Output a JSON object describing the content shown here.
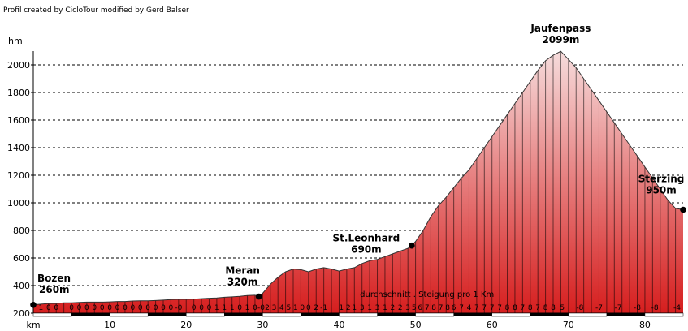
{
  "credit": "Profil created by CicloTour modified by Gerd Balser",
  "chart_data": {
    "type": "area",
    "title": "",
    "xlabel": "km",
    "ylabel": "hm",
    "xlim": [
      0,
      85
    ],
    "ylim": [
      200,
      2100
    ],
    "x_ticks": [
      10,
      20,
      30,
      40,
      50,
      60,
      70,
      80
    ],
    "y_ticks": [
      200,
      400,
      600,
      800,
      1000,
      1200,
      1400,
      1600,
      1800,
      2000
    ],
    "grid": true,
    "profile": {
      "x": [
        0,
        1,
        2,
        3,
        4,
        5,
        6,
        7,
        8,
        9,
        10,
        11,
        12,
        13,
        14,
        15,
        16,
        17,
        18,
        19,
        20,
        21,
        22,
        23,
        24,
        25,
        26,
        27,
        28,
        29,
        29.5,
        30,
        31,
        32,
        33,
        34,
        35,
        36,
        37,
        38,
        39,
        40,
        41,
        42,
        43,
        44,
        45,
        46,
        47,
        48,
        49,
        49.5,
        50,
        51,
        52,
        53,
        54,
        55,
        56,
        57,
        58,
        59,
        60,
        61,
        62,
        63,
        64,
        65,
        66,
        67,
        68,
        69,
        70,
        71,
        72,
        73,
        74,
        75,
        76,
        77,
        78,
        79,
        80,
        81,
        82,
        83,
        84,
        85
      ],
      "y": [
        260,
        265,
        270,
        270,
        275,
        275,
        278,
        280,
        280,
        280,
        282,
        285,
        285,
        288,
        290,
        290,
        292,
        295,
        298,
        300,
        300,
        302,
        305,
        308,
        310,
        315,
        318,
        322,
        328,
        330,
        320,
        345,
        410,
        460,
        500,
        520,
        515,
        500,
        520,
        530,
        520,
        505,
        520,
        530,
        560,
        580,
        590,
        610,
        630,
        650,
        670,
        690,
        720,
        800,
        900,
        980,
        1040,
        1110,
        1180,
        1240,
        1320,
        1400,
        1480,
        1560,
        1640,
        1720,
        1800,
        1880,
        1960,
        2030,
        2070,
        2099,
        2040,
        1980,
        1900,
        1820,
        1740,
        1660,
        1580,
        1500,
        1420,
        1340,
        1260,
        1180,
        1100,
        1020,
        960,
        950
      ]
    },
    "places": [
      {
        "name": "Bozen",
        "elevation_label": "260m",
        "km": 0,
        "elev": 260
      },
      {
        "name": "Meran",
        "elevation_label": "320m",
        "km": 29.5,
        "elev": 320
      },
      {
        "name": "St.Leonhard",
        "elevation_label": "690m",
        "km": 49.5,
        "elev": 690
      },
      {
        "name": "Jaufenpass",
        "elevation_label": "2099m",
        "km": 69,
        "elev": 2099
      },
      {
        "name": "Sterzing",
        "elevation_label": "950m",
        "km": 85,
        "elev": 950
      }
    ],
    "gradient_note": "durchschnitt . Steigung pro 1 Km",
    "gradients": [
      {
        "km": 1,
        "text": "1"
      },
      {
        "km": 2,
        "text": "0"
      },
      {
        "km": 3,
        "text": "0"
      },
      {
        "km": 5,
        "text": "0"
      },
      {
        "km": 6,
        "text": "0"
      },
      {
        "km": 7,
        "text": "0"
      },
      {
        "km": 8,
        "text": "0"
      },
      {
        "km": 9,
        "text": "0"
      },
      {
        "km": 10,
        "text": "0"
      },
      {
        "km": 11,
        "text": "0"
      },
      {
        "km": 12,
        "text": "0"
      },
      {
        "km": 13,
        "text": "0"
      },
      {
        "km": 14,
        "text": "0"
      },
      {
        "km": 15,
        "text": "0"
      },
      {
        "km": 16,
        "text": "0"
      },
      {
        "km": 17,
        "text": "0"
      },
      {
        "km": 18,
        "text": "0"
      },
      {
        "km": 19,
        "text": "-0"
      },
      {
        "km": 21,
        "text": "0"
      },
      {
        "km": 22,
        "text": "0"
      },
      {
        "km": 23,
        "text": "0"
      },
      {
        "km": 24,
        "text": "1"
      },
      {
        "km": 25,
        "text": "1"
      },
      {
        "km": 26,
        "text": "1"
      },
      {
        "km": 27,
        "text": "0"
      },
      {
        "km": 28,
        "text": "1"
      },
      {
        "km": 29,
        "text": "0"
      },
      {
        "km": 29.8,
        "text": "-0"
      },
      {
        "km": 30.6,
        "text": "2"
      },
      {
        "km": 31.5,
        "text": "3"
      },
      {
        "km": 32.5,
        "text": "4"
      },
      {
        "km": 33.4,
        "text": "5"
      },
      {
        "km": 34.3,
        "text": "1"
      },
      {
        "km": 35.2,
        "text": "0"
      },
      {
        "km": 36,
        "text": "0"
      },
      {
        "km": 37,
        "text": "2"
      },
      {
        "km": 38,
        "text": "-1"
      },
      {
        "km": 40.3,
        "text": "1"
      },
      {
        "km": 41.2,
        "text": "2"
      },
      {
        "km": 42,
        "text": "1"
      },
      {
        "km": 43,
        "text": "3"
      },
      {
        "km": 44,
        "text": "1"
      },
      {
        "km": 45,
        "text": "3"
      },
      {
        "km": 46,
        "text": "1"
      },
      {
        "km": 47,
        "text": "2"
      },
      {
        "km": 48,
        "text": "2"
      },
      {
        "km": 49,
        "text": "3"
      },
      {
        "km": 49.8,
        "text": "5"
      },
      {
        "km": 50.6,
        "text": "6"
      },
      {
        "km": 51.5,
        "text": "7"
      },
      {
        "km": 52.4,
        "text": "8"
      },
      {
        "km": 53.3,
        "text": "7"
      },
      {
        "km": 54.2,
        "text": "8"
      },
      {
        "km": 55,
        "text": "6"
      },
      {
        "km": 56,
        "text": "7"
      },
      {
        "km": 57,
        "text": "4"
      },
      {
        "km": 58,
        "text": "7"
      },
      {
        "km": 59,
        "text": "7"
      },
      {
        "km": 60,
        "text": "7"
      },
      {
        "km": 61,
        "text": "7"
      },
      {
        "km": 62,
        "text": "8"
      },
      {
        "km": 63,
        "text": "8"
      },
      {
        "km": 64,
        "text": "7"
      },
      {
        "km": 65,
        "text": "8"
      },
      {
        "km": 66,
        "text": "7"
      },
      {
        "km": 67,
        "text": "8"
      },
      {
        "km": 68,
        "text": "8"
      },
      {
        "km": 69.2,
        "text": "5"
      },
      {
        "km": 71.5,
        "text": "-8"
      },
      {
        "km": 74,
        "text": "-7"
      },
      {
        "km": 76.5,
        "text": "-7"
      },
      {
        "km": 79,
        "text": "-8"
      },
      {
        "km": 81.3,
        "text": "-8"
      },
      {
        "km": 84.2,
        "text": "-4"
      }
    ],
    "colors": {
      "fill_top": "#f6dcdc",
      "fill_bottom": "#d61e1e",
      "line": "#333333"
    }
  }
}
